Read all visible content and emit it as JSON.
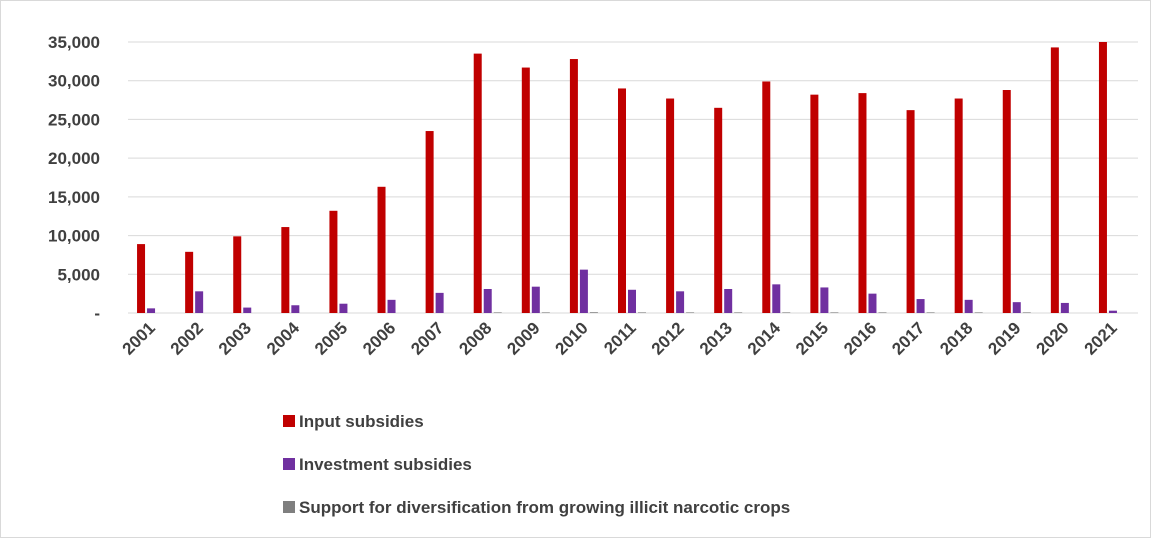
{
  "chart_data": {
    "type": "bar",
    "categories": [
      "2001",
      "2002",
      "2003",
      "2004",
      "2005",
      "2006",
      "2007",
      "2008",
      "2009",
      "2010",
      "2011",
      "2012",
      "2013",
      "2014",
      "2015",
      "2016",
      "2017",
      "2018",
      "2019",
      "2020",
      "2021"
    ],
    "series": [
      {
        "name": "Input subsidies",
        "color": "#c00000",
        "values": [
          8900,
          7900,
          9900,
          11100,
          13200,
          16300,
          23500,
          33500,
          31700,
          32800,
          29000,
          27700,
          26500,
          29900,
          28200,
          28400,
          26200,
          27700,
          28800,
          34300,
          35000
        ]
      },
      {
        "name": "Investment subsidies",
        "color": "#7030a0",
        "values": [
          600,
          2800,
          700,
          1000,
          1200,
          1700,
          2600,
          3100,
          3400,
          5600,
          3000,
          2800,
          3100,
          3700,
          3300,
          2500,
          1800,
          1700,
          1400,
          1300,
          300
        ]
      },
      {
        "name": "Support for diversification from growing illicit narcotic crops",
        "color": "#7f7f7f",
        "values": [
          0,
          0,
          0,
          0,
          0,
          0,
          0,
          80,
          80,
          100,
          80,
          80,
          80,
          80,
          80,
          80,
          80,
          80,
          80,
          0,
          0
        ]
      }
    ],
    "ylim": [
      0,
      35000
    ],
    "yticks": [
      {
        "value": 0,
        "label": "-"
      },
      {
        "value": 5000,
        "label": "5,000"
      },
      {
        "value": 10000,
        "label": "10,000"
      },
      {
        "value": 15000,
        "label": "15,000"
      },
      {
        "value": 20000,
        "label": "20,000"
      },
      {
        "value": 25000,
        "label": "25,000"
      },
      {
        "value": 30000,
        "label": "30,000"
      },
      {
        "value": 35000,
        "label": "35,000"
      }
    ],
    "grid": true
  }
}
